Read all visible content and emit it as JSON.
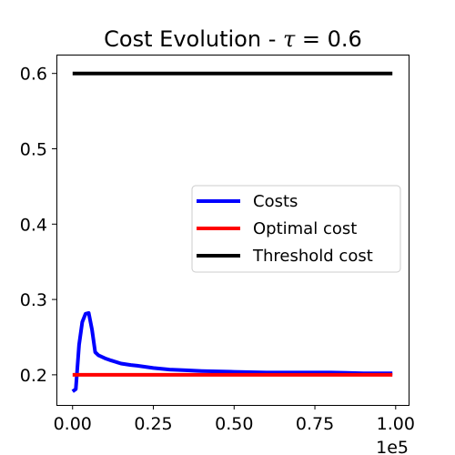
{
  "chart_data": {
    "type": "line",
    "title": "Cost Evolution - τ = 0.6",
    "title_prefix": "Cost Evolution - ",
    "title_symbol": "τ",
    "title_suffix": " = 0.6",
    "xlabel": "",
    "ylabel": "",
    "x_offset_label": "1e5",
    "x_scale": 100000,
    "xlim": [
      -5000,
      104000
    ],
    "ylim": [
      0.16,
      0.625
    ],
    "x_ticks": [
      0,
      25000,
      50000,
      75000,
      100000
    ],
    "x_tick_labels": [
      "0.00",
      "0.25",
      "0.50",
      "0.75",
      "1.00"
    ],
    "y_ticks": [
      0.2,
      0.3,
      0.4,
      0.5,
      0.6
    ],
    "y_tick_labels": [
      "0.2",
      "0.3",
      "0.4",
      "0.5",
      "0.6"
    ],
    "grid": false,
    "legend_position": "center-right",
    "series": [
      {
        "name": "Costs",
        "color": "#0000ff",
        "x": [
          0,
          1000,
          2000,
          3000,
          4000,
          5000,
          6000,
          7000,
          8000,
          10000,
          12000,
          15000,
          18000,
          20000,
          25000,
          30000,
          35000,
          40000,
          50000,
          60000,
          70000,
          80000,
          90000,
          99000
        ],
        "y": [
          0.178,
          0.181,
          0.24,
          0.27,
          0.281,
          0.282,
          0.26,
          0.23,
          0.226,
          0.222,
          0.219,
          0.215,
          0.213,
          0.212,
          0.209,
          0.207,
          0.206,
          0.205,
          0.204,
          0.203,
          0.203,
          0.203,
          0.202,
          0.202
        ]
      },
      {
        "name": "Optimal cost",
        "color": "#ff0000",
        "x": [
          0,
          99000
        ],
        "y": [
          0.2,
          0.2
        ]
      },
      {
        "name": "Threshold cost",
        "color": "#000000",
        "x": [
          0,
          99000
        ],
        "y": [
          0.6,
          0.6
        ]
      }
    ]
  }
}
